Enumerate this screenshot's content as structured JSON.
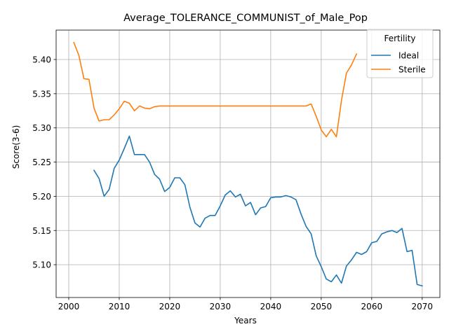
{
  "chart_data": {
    "type": "line",
    "title": "Average_TOLERANCE_COMMUNIST_of_Male_Pop",
    "xlabel": "Years",
    "ylabel": "Score(3-6)",
    "xlim": [
      1997.5,
      2073.5
    ],
    "ylim": [
      5.052,
      5.443
    ],
    "xticks": [
      2000,
      2010,
      2020,
      2030,
      2040,
      2050,
      2060,
      2070
    ],
    "yticks": [
      5.1,
      5.15,
      5.2,
      5.25,
      5.3,
      5.35,
      5.4
    ],
    "ytick_labels": [
      "5.10",
      "5.15",
      "5.20",
      "5.25",
      "5.30",
      "5.35",
      "5.40"
    ],
    "grid": true,
    "legend": {
      "title": "Fertility",
      "placement": "top-right"
    },
    "series": [
      {
        "name": "Ideal",
        "color": "#1f77b4",
        "x": [
          2005,
          2006,
          2007,
          2008,
          2009,
          2010,
          2011,
          2012,
          2013,
          2014,
          2015,
          2016,
          2017,
          2018,
          2019,
          2020,
          2021,
          2022,
          2023,
          2024,
          2025,
          2026,
          2027,
          2028,
          2029,
          2030,
          2031,
          2032,
          2033,
          2034,
          2035,
          2036,
          2037,
          2038,
          2039,
          2040,
          2041,
          2042,
          2043,
          2044,
          2045,
          2046,
          2047,
          2048,
          2049,
          2050,
          2051,
          2052,
          2053,
          2054,
          2055,
          2056,
          2057,
          2058,
          2059,
          2060,
          2061,
          2062,
          2063,
          2064,
          2065,
          2066,
          2067,
          2068,
          2069,
          2070
        ],
        "y": [
          5.238,
          5.226,
          5.2,
          5.21,
          5.241,
          5.253,
          5.27,
          5.288,
          5.261,
          5.261,
          5.261,
          5.25,
          5.232,
          5.225,
          5.207,
          5.213,
          5.227,
          5.227,
          5.217,
          5.184,
          5.161,
          5.155,
          5.168,
          5.172,
          5.172,
          5.186,
          5.202,
          5.208,
          5.199,
          5.203,
          5.186,
          5.191,
          5.173,
          5.183,
          5.185,
          5.198,
          5.199,
          5.199,
          5.201,
          5.199,
          5.195,
          5.174,
          5.156,
          5.145,
          5.113,
          5.097,
          5.079,
          5.075,
          5.085,
          5.073,
          5.098,
          5.107,
          5.118,
          5.115,
          5.119,
          5.132,
          5.134,
          5.145,
          5.148,
          5.15,
          5.147,
          5.153,
          5.119,
          5.121,
          5.071,
          5.069
        ]
      },
      {
        "name": "Sterile",
        "color": "#ff7f0e",
        "x": [
          2001,
          2002,
          2003,
          2004,
          2005,
          2006,
          2007,
          2008,
          2009,
          2010,
          2011,
          2012,
          2013,
          2014,
          2015,
          2016,
          2017,
          2018,
          2019,
          2020,
          2021,
          2022,
          2023,
          2024,
          2025,
          2026,
          2027,
          2028,
          2029,
          2030,
          2031,
          2032,
          2033,
          2034,
          2035,
          2036,
          2037,
          2038,
          2039,
          2040,
          2041,
          2042,
          2043,
          2044,
          2045,
          2046,
          2047,
          2048,
          2049,
          2050,
          2051,
          2052,
          2053,
          2054,
          2055,
          2056,
          2057
        ],
        "y": [
          5.425,
          5.406,
          5.372,
          5.371,
          5.329,
          5.31,
          5.312,
          5.312,
          5.319,
          5.328,
          5.339,
          5.336,
          5.325,
          5.332,
          5.329,
          5.328,
          5.331,
          5.332,
          5.332,
          5.332,
          5.332,
          5.332,
          5.332,
          5.332,
          5.332,
          5.332,
          5.332,
          5.332,
          5.332,
          5.332,
          5.332,
          5.332,
          5.332,
          5.332,
          5.332,
          5.332,
          5.332,
          5.332,
          5.332,
          5.332,
          5.332,
          5.332,
          5.332,
          5.332,
          5.332,
          5.332,
          5.332,
          5.335,
          5.317,
          5.297,
          5.287,
          5.298,
          5.287,
          5.34,
          5.38,
          5.392,
          5.408
        ]
      }
    ]
  }
}
